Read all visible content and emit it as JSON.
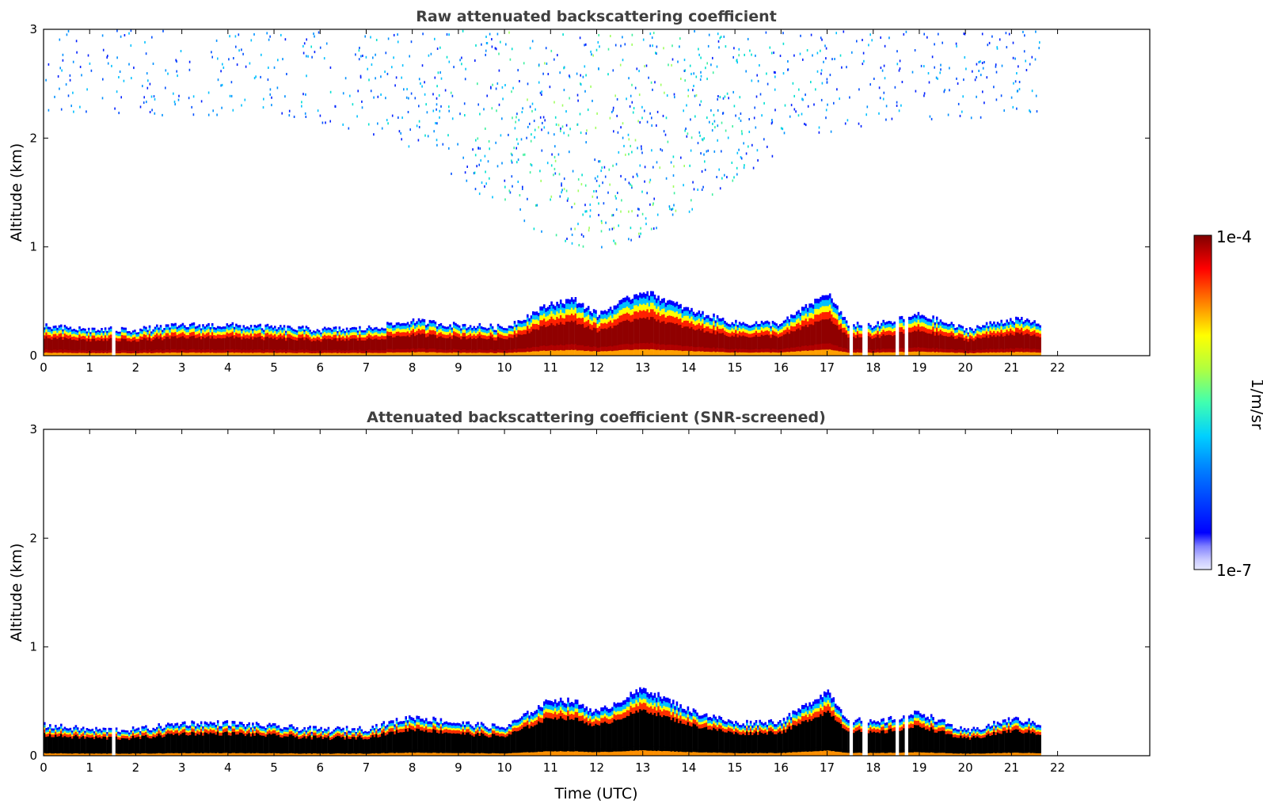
{
  "chart_data": [
    {
      "type": "heatmap",
      "title": "Raw attenuated backscattering coefficient",
      "xlabel": "",
      "ylabel": "Altitude (km)",
      "xlim": [
        0,
        24
      ],
      "ylim": [
        0,
        3
      ],
      "xticks": [
        "0",
        "1",
        "2",
        "3",
        "4",
        "5",
        "6",
        "7",
        "8",
        "9",
        "10",
        "11",
        "12",
        "13",
        "14",
        "15",
        "16",
        "17",
        "18",
        "19",
        "20",
        "21",
        "22"
      ],
      "yticks": [
        "0",
        "1",
        "2",
        "3"
      ],
      "data_time_range_hours": [
        0,
        21.6
      ],
      "data_gap_hours": [
        1.5,
        17.5,
        17.8,
        18.5,
        18.7
      ],
      "boundary_layer_top_km": [
        [
          0,
          0.27
        ],
        [
          1,
          0.24
        ],
        [
          2,
          0.24
        ],
        [
          3,
          0.28
        ],
        [
          4,
          0.28
        ],
        [
          5,
          0.26
        ],
        [
          6,
          0.24
        ],
        [
          7,
          0.25
        ],
        [
          8,
          0.32
        ],
        [
          9,
          0.28
        ],
        [
          10,
          0.26
        ],
        [
          11,
          0.48
        ],
        [
          11.5,
          0.52
        ],
        [
          12,
          0.38
        ],
        [
          13,
          0.6
        ],
        [
          14,
          0.42
        ],
        [
          15,
          0.3
        ],
        [
          16,
          0.3
        ],
        [
          17,
          0.58
        ],
        [
          17.4,
          0.3
        ],
        [
          18,
          0.28
        ],
        [
          19,
          0.38
        ],
        [
          20,
          0.24
        ],
        [
          21,
          0.34
        ],
        [
          21.6,
          0.3
        ]
      ],
      "scattered_signal_top_km": 3,
      "colorscale": "jet",
      "grid": false
    },
    {
      "type": "heatmap",
      "title": "Attenuated backscattering coefficient (SNR-screened)",
      "xlabel": "Time (UTC)",
      "ylabel": "Altitude (km)",
      "xlim": [
        0,
        24
      ],
      "ylim": [
        0,
        3
      ],
      "xticks": [
        "0",
        "1",
        "2",
        "3",
        "4",
        "5",
        "6",
        "7",
        "8",
        "9",
        "10",
        "11",
        "12",
        "13",
        "14",
        "15",
        "16",
        "17",
        "18",
        "19",
        "20",
        "21",
        "22"
      ],
      "yticks": [
        "0",
        "1",
        "2",
        "3"
      ],
      "data_time_range_hours": [
        0,
        21.6
      ],
      "data_gap_hours": [
        1.5,
        17.5,
        17.8,
        18.5,
        18.7
      ],
      "boundary_layer_top_km": [
        [
          0,
          0.28
        ],
        [
          1,
          0.24
        ],
        [
          2,
          0.24
        ],
        [
          3,
          0.3
        ],
        [
          4,
          0.3
        ],
        [
          5,
          0.27
        ],
        [
          6,
          0.24
        ],
        [
          7,
          0.25
        ],
        [
          8,
          0.36
        ],
        [
          9,
          0.3
        ],
        [
          10,
          0.26
        ],
        [
          11,
          0.52
        ],
        [
          11.5,
          0.5
        ],
        [
          12,
          0.4
        ],
        [
          13,
          0.62
        ],
        [
          14,
          0.42
        ],
        [
          15,
          0.3
        ],
        [
          16,
          0.32
        ],
        [
          17,
          0.6
        ],
        [
          17.4,
          0.35
        ],
        [
          18,
          0.3
        ],
        [
          19,
          0.4
        ],
        [
          20,
          0.22
        ],
        [
          21,
          0.34
        ],
        [
          21.6,
          0.3
        ]
      ],
      "colorscale": "jet",
      "grid": false
    }
  ],
  "colorbar": {
    "label": "1/m/sr",
    "max_label": "1e-4",
    "min_label": "1e-7",
    "scale": "log",
    "range": [
      1e-07,
      0.0001
    ]
  }
}
